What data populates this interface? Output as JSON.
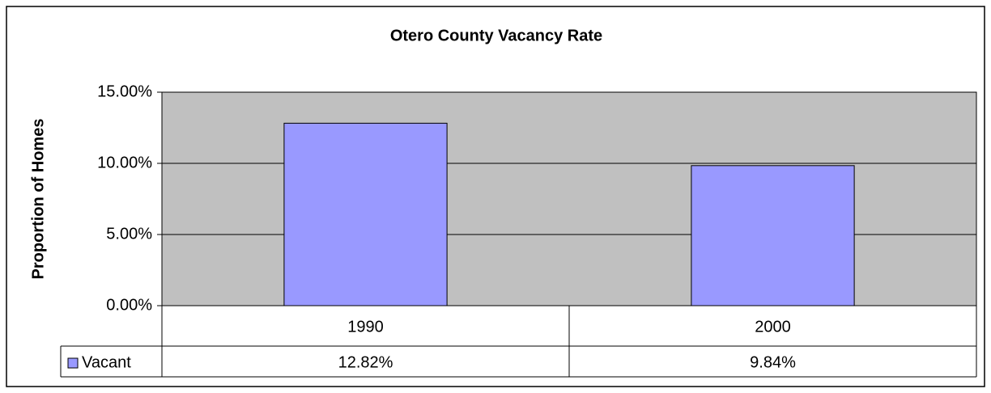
{
  "chart_data": {
    "type": "bar",
    "title": "Otero County Vacancy Rate",
    "y_axis_label": "Proportion of Homes",
    "categories": [
      "1990",
      "2000"
    ],
    "series": [
      {
        "name": "Vacant",
        "color": "#9999ff",
        "values": [
          12.82,
          9.84
        ],
        "value_labels": [
          "12.82%",
          "9.84%"
        ]
      }
    ],
    "ylim": [
      0,
      15
    ],
    "yticks": [
      {
        "value": 0,
        "label": "0.00%"
      },
      {
        "value": 5,
        "label": "5.00%"
      },
      {
        "value": 10,
        "label": "10.00%"
      },
      {
        "value": 15,
        "label": "15.00%"
      }
    ],
    "grid": true,
    "plot_background": "#c0c0c0",
    "data_table": true
  }
}
